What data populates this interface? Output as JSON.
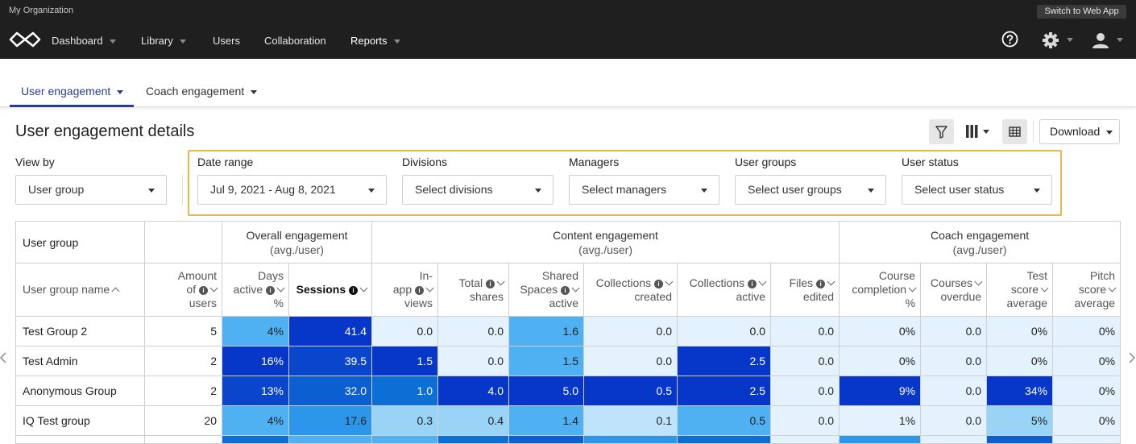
{
  "topbar": {
    "org_name": "My Organization",
    "switch_label": "Switch to Web App",
    "nav": [
      {
        "label": "Dashboard"
      },
      {
        "label": "Library"
      },
      {
        "label": "Users"
      },
      {
        "label": "Collaboration"
      },
      {
        "label": "Reports"
      }
    ]
  },
  "tabs": [
    {
      "label": "User engagement"
    },
    {
      "label": "Coach engagement"
    }
  ],
  "page_title": "User engagement details",
  "download_label": "Download",
  "filters": {
    "view_by": {
      "label": "View by",
      "value": "User group"
    },
    "date_range": {
      "label": "Date range",
      "value": "Jul 9, 2021 - Aug 8, 2021"
    },
    "divisions": {
      "label": "Divisions",
      "value": "Select divisions"
    },
    "managers": {
      "label": "Managers",
      "value": "Select managers"
    },
    "user_groups": {
      "label": "User groups",
      "value": "Select user groups"
    },
    "user_status": {
      "label": "User status",
      "value": "Select user status"
    }
  },
  "table": {
    "group_headers": {
      "user_group": "User group",
      "overall": "Overall engagement",
      "overall_sub": "(avg./user)",
      "content": "Content engagement",
      "content_sub": "(avg./user)",
      "coach": "Coach engagement",
      "coach_sub": "(avg./user)"
    },
    "columns": [
      {
        "l1": "User group name"
      },
      {
        "l1": "Amount",
        "l2": "of",
        "l3": "users"
      },
      {
        "l1": "Days",
        "l2": "active",
        "l3": "%"
      },
      {
        "l1": "Sessions"
      },
      {
        "l1": "In-",
        "l2": "app",
        "l3": "views"
      },
      {
        "l1": "Total",
        "l2": "shares"
      },
      {
        "l1": "Shared",
        "l2": "Spaces",
        "l3": "active"
      },
      {
        "l1": "Collections",
        "l2": "created"
      },
      {
        "l1": "Collections",
        "l2": "active"
      },
      {
        "l1": "Files",
        "l2": "edited"
      },
      {
        "l1": "Course",
        "l2": "completion",
        "l3": "%"
      },
      {
        "l1": "Courses",
        "l2": "overdue"
      },
      {
        "l1": "Test",
        "l2": "score",
        "l3": "average"
      },
      {
        "l1": "Pitch",
        "l2": "score",
        "l3": "average"
      }
    ],
    "rows": [
      {
        "name": "Test Group 2",
        "cells": [
          "5",
          "4%",
          "41.4",
          "0.0",
          "0.0",
          "1.6",
          "0.0",
          "0.0",
          "0.0",
          "0%",
          "0.0",
          "0%",
          "0%"
        ]
      },
      {
        "name": "Test Admin",
        "cells": [
          "2",
          "16%",
          "39.5",
          "1.5",
          "0.0",
          "1.5",
          "0.0",
          "2.5",
          "0.0",
          "0%",
          "0.0",
          "0%",
          "0%"
        ]
      },
      {
        "name": "Anonymous Group",
        "cells": [
          "2",
          "13%",
          "32.0",
          "1.0",
          "4.0",
          "5.0",
          "0.5",
          "2.5",
          "0.0",
          "9%",
          "0.0",
          "34%",
          "0%"
        ]
      },
      {
        "name": "IQ Test group",
        "cells": [
          "20",
          "4%",
          "17.6",
          "0.3",
          "0.4",
          "1.4",
          "0.1",
          "0.5",
          "0.0",
          "1%",
          "0.0",
          "5%",
          "0%"
        ]
      }
    ]
  },
  "colors": {
    "nav_bg": "#1f1f1f",
    "accent": "#2a3d8f",
    "highlight_border": "#f0b548",
    "heat_lightest": "#e3f2fc",
    "heat_light": "#99d4f7",
    "heat_mid": "#4fb1f2",
    "heat_dark": "#0c5fd1",
    "heat_darkest": "#0637c8"
  }
}
